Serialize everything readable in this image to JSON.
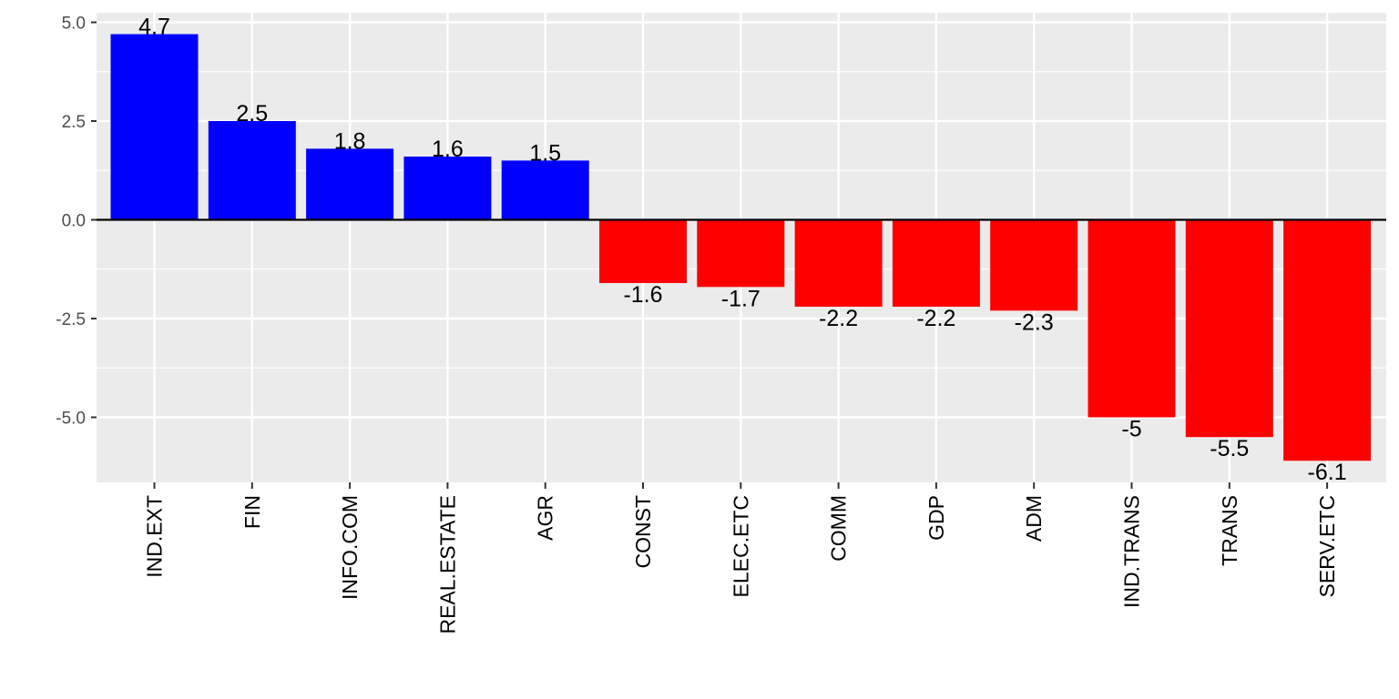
{
  "chart_data": {
    "type": "bar",
    "title": "",
    "xlabel": "",
    "ylabel": "",
    "categories": [
      "IND.EXT",
      "FIN",
      "INFO.COM",
      "REAL.ESTATE",
      "AGR",
      "CONST",
      "ELEC.ETC",
      "COMM",
      "GDP",
      "ADM",
      "IND.TRANS",
      "TRANS",
      "SERV.ETC"
    ],
    "values": [
      4.7,
      2.5,
      1.8,
      1.6,
      1.5,
      -1.6,
      -1.7,
      -2.2,
      -2.2,
      -2.3,
      -5,
      -5.5,
      -6.1
    ],
    "value_labels": [
      "4.7",
      "2.5",
      "1.8",
      "1.6",
      "1.5",
      "-1.6",
      "-1.7",
      "-2.2",
      "-2.2",
      "-2.3",
      "-5",
      "-5.5",
      "-6.1"
    ],
    "ylim": [
      -6.6,
      5.2
    ],
    "yticks": [
      5.0,
      2.5,
      0.0,
      -2.5,
      -5.0
    ],
    "ytick_labels": [
      "5.0",
      "2.5",
      "0.0",
      "-2.5",
      "-5.0"
    ],
    "positive_color": "#0000ff",
    "negative_color": "#ff0000",
    "panel_background": "#ebebeb",
    "grid_color": "#ffffff",
    "zero_line_color": "#000000",
    "grid": true,
    "legend": "none"
  }
}
